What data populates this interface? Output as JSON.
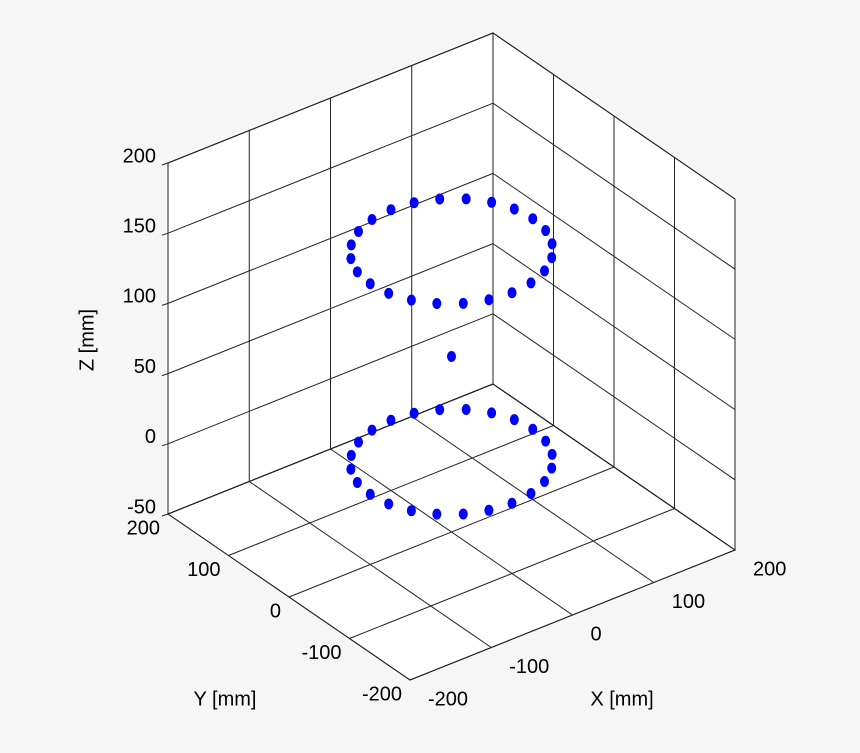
{
  "chart_data": {
    "type": "scatter3d",
    "xlabel": "X [mm]",
    "ylabel": "Y [mm]",
    "zlabel": "Z [mm]",
    "xlim": [
      -200,
      200
    ],
    "ylim": [
      -200,
      200
    ],
    "zlim": [
      -50,
      200
    ],
    "xticks": [
      -200,
      -100,
      0,
      100,
      200
    ],
    "yticks": [
      -200,
      -100,
      0,
      100,
      200
    ],
    "zticks": [
      -50,
      0,
      50,
      100,
      150,
      200
    ],
    "grid": true,
    "series": [
      {
        "color": "#0000ff",
        "x": [
          100,
          96.6,
          86.6,
          70.7,
          50,
          25.9,
          0,
          -25.9,
          -50,
          -70.7,
          -86.6,
          -96.6,
          -100,
          -96.6,
          -86.6,
          -70.7,
          -50,
          -25.9,
          0,
          25.9,
          50,
          70.7,
          86.6,
          96.6,
          0,
          100,
          96.6,
          86.6,
          70.7,
          50,
          25.9,
          0,
          -25.9,
          -50,
          -70.7,
          -86.6,
          -96.6,
          -100,
          -96.6,
          -86.6,
          -70.7,
          -50,
          -25.9,
          0,
          25.9,
          50,
          70.7,
          86.6,
          96.6
        ],
        "y": [
          0,
          25.9,
          50,
          70.7,
          86.6,
          96.6,
          100,
          96.6,
          86.6,
          70.7,
          50,
          25.9,
          0,
          -25.9,
          -50,
          -70.7,
          -86.6,
          -96.6,
          -100,
          -96.6,
          -86.6,
          -70.7,
          -50,
          -25.9,
          0,
          0,
          25.9,
          50,
          70.7,
          86.6,
          96.6,
          100,
          96.6,
          86.6,
          70.7,
          50,
          25.9,
          0,
          -25.9,
          -50,
          -70.7,
          -86.6,
          -96.6,
          -100,
          -96.6,
          -86.6,
          -70.7,
          -50,
          -25.9
        ],
        "z": [
          0,
          0,
          0,
          0,
          0,
          0,
          0,
          0,
          0,
          0,
          0,
          0,
          0,
          0,
          0,
          0,
          0,
          0,
          0,
          0,
          0,
          0,
          0,
          0,
          75,
          150,
          150,
          150,
          150,
          150,
          150,
          150,
          150,
          150,
          150,
          150,
          150,
          150,
          150,
          150,
          150,
          150,
          150,
          150,
          150,
          150,
          150,
          150,
          150
        ]
      }
    ]
  }
}
